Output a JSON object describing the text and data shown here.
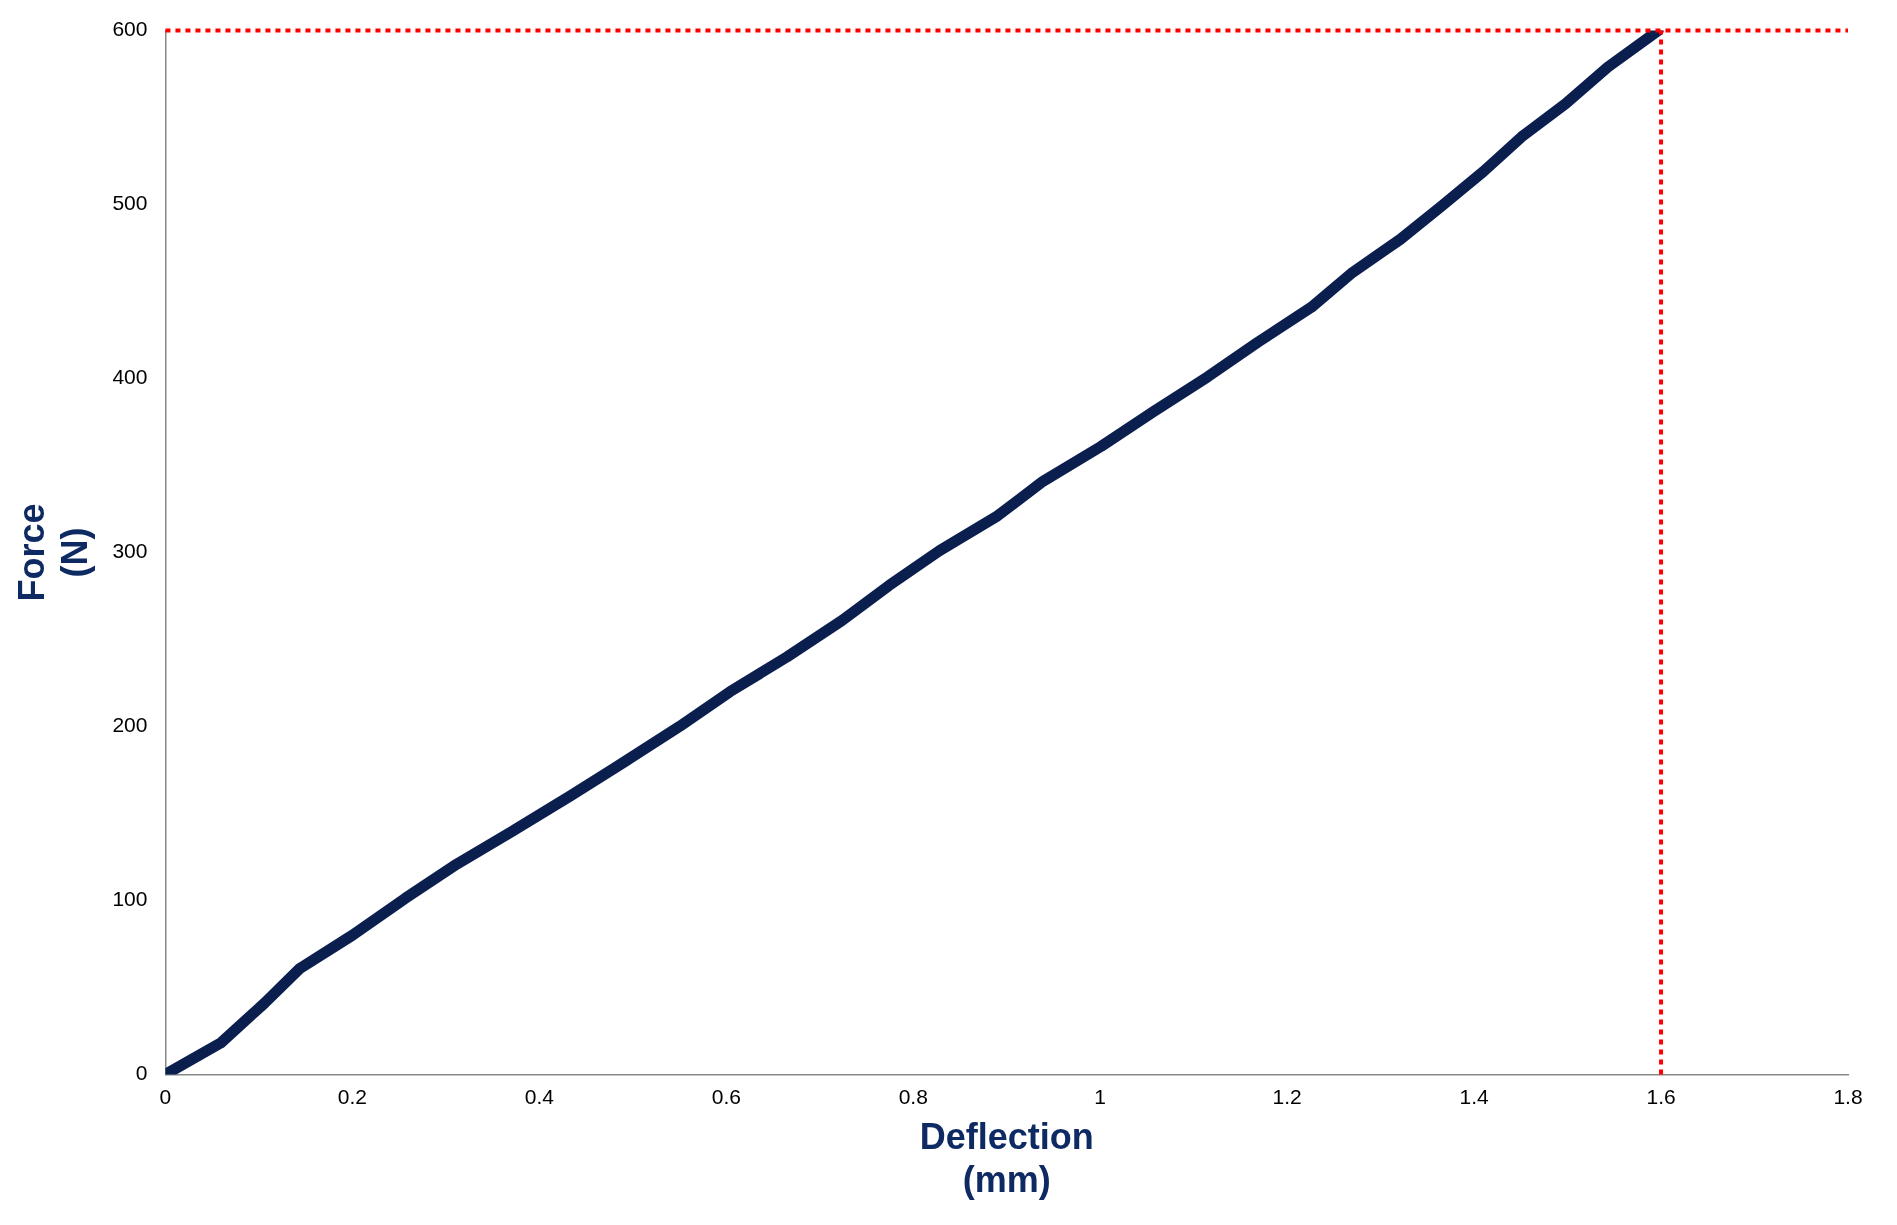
{
  "chart_data": {
    "type": "line",
    "xlabel": "Deflection\n(mm)",
    "ylabel": "Force\n(N)",
    "xlim": [
      0,
      1.8
    ],
    "xticks": [
      0,
      0.2,
      0.4,
      0.6,
      0.8,
      1,
      1.2,
      1.4,
      1.6,
      1.8
    ],
    "ylim": [
      0,
      600
    ],
    "yticks": [
      0,
      100,
      200,
      300,
      400,
      500,
      600
    ],
    "grid": false,
    "legend": false,
    "marker": "none",
    "line_style": "solid",
    "series": [
      {
        "color": "#0b1f4f",
        "x": [
          0,
          0.059,
          0.106,
          0.144,
          0.2,
          0.256,
          0.312,
          0.375,
          0.433,
          0.492,
          0.55,
          0.604,
          0.665,
          0.724,
          0.774,
          0.828,
          0.89,
          0.939,
          1.001,
          1.057,
          1.115,
          1.169,
          1.226,
          1.27,
          1.321,
          1.365,
          1.41,
          1.451,
          1.498,
          1.543,
          1.597
        ],
        "values": [
          0,
          18,
          41,
          61,
          80,
          101,
          121,
          141,
          160,
          180,
          200,
          220,
          240,
          261,
          281,
          301,
          321,
          341,
          361,
          381,
          401,
          421,
          441,
          461,
          480,
          499,
          519,
          539,
          558,
          579,
          600
        ]
      }
    ],
    "ref_lines": [
      {
        "axis": "x",
        "value": 1.6,
        "color": "#ff0000",
        "line_style": "dotted"
      },
      {
        "axis": "y",
        "value": 600,
        "color": "#ff0000",
        "line_style": "dotted"
      }
    ]
  }
}
